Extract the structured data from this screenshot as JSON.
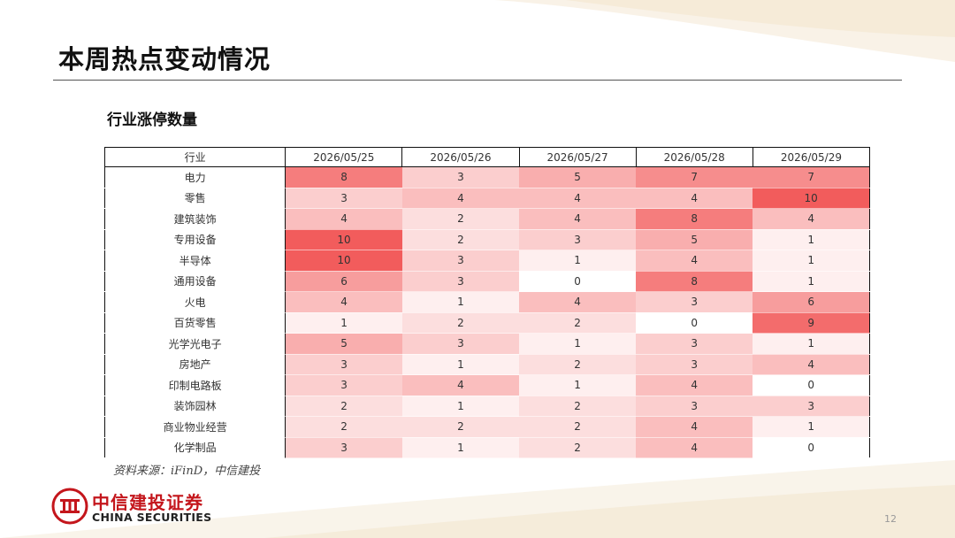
{
  "page": {
    "title": "本周热点变动情况",
    "section_title": "行业涨停数量",
    "source_note": "资料来源：iFinD，中信建投",
    "page_number": "12"
  },
  "brand": {
    "name_cn": "中信建投证券",
    "name_en": "CHINA SECURITIES",
    "color": "#c4161c"
  },
  "chart_data": {
    "type": "heatmap",
    "row_header": "行业",
    "columns": [
      "2026/05/25",
      "2026/05/26",
      "2026/05/27",
      "2026/05/28",
      "2026/05/29"
    ],
    "rows": [
      {
        "industry": "电力",
        "values": [
          8,
          3,
          5,
          7,
          7
        ]
      },
      {
        "industry": "零售",
        "values": [
          3,
          4,
          4,
          4,
          10
        ]
      },
      {
        "industry": "建筑装饰",
        "values": [
          4,
          2,
          4,
          8,
          4
        ]
      },
      {
        "industry": "专用设备",
        "values": [
          10,
          2,
          3,
          5,
          1
        ]
      },
      {
        "industry": "半导体",
        "values": [
          10,
          3,
          1,
          4,
          1
        ]
      },
      {
        "industry": "通用设备",
        "values": [
          6,
          3,
          0,
          8,
          1
        ]
      },
      {
        "industry": "火电",
        "values": [
          4,
          1,
          4,
          3,
          6
        ]
      },
      {
        "industry": "百货零售",
        "values": [
          1,
          2,
          2,
          0,
          9
        ]
      },
      {
        "industry": "光学光电子",
        "values": [
          5,
          3,
          1,
          3,
          1
        ]
      },
      {
        "industry": "房地产",
        "values": [
          3,
          1,
          2,
          3,
          4
        ]
      },
      {
        "industry": "印制电路板",
        "values": [
          3,
          4,
          1,
          4,
          0
        ]
      },
      {
        "industry": "装饰园林",
        "values": [
          2,
          1,
          2,
          3,
          3
        ]
      },
      {
        "industry": "商业物业经营",
        "values": [
          2,
          2,
          2,
          4,
          1
        ]
      },
      {
        "industry": "化学制品",
        "values": [
          3,
          1,
          2,
          4,
          0
        ]
      }
    ],
    "color_scale": {
      "min": 0,
      "max": 10,
      "low_color": "#ffffff",
      "high_color": "#f25c5c"
    }
  }
}
